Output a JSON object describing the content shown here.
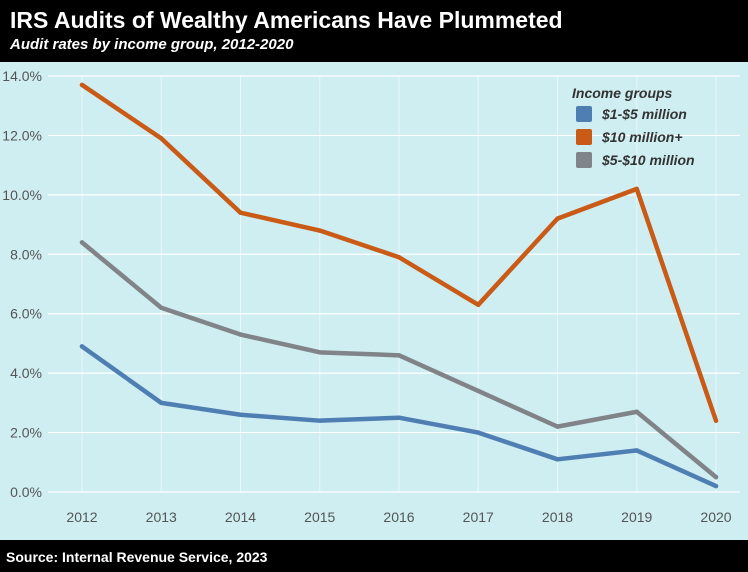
{
  "header": {
    "title": "IRS Audits of Wealthy Americans Have Plummeted",
    "subtitle": "Audit rates by income group, 2012-2020"
  },
  "footer": {
    "source": "Source: Internal Revenue Service, 2023"
  },
  "colors": {
    "background": "#cfeef2",
    "grid": "#ffffff",
    "axis_text": "#555555",
    "series_1_5m": "#4f7eb3",
    "series_10m": "#c95b16",
    "series_5_10m": "#808489"
  },
  "chart_data": {
    "type": "line",
    "title": "IRS Audits of Wealthy Americans Have Plummeted",
    "subtitle": "Audit rates by income group, 2012-2020",
    "x": [
      "2012",
      "2013",
      "2014",
      "2015",
      "2016",
      "2017",
      "2018",
      "2019",
      "2020"
    ],
    "xlabel": "",
    "ylabel": "",
    "ylim": [
      0,
      14
    ],
    "y_ticks": [
      0,
      2,
      4,
      6,
      8,
      10,
      12,
      14
    ],
    "y_tick_labels": [
      "0.0%",
      "2.0%",
      "4.0%",
      "6.0%",
      "8.0%",
      "10.0%",
      "12.0%",
      "14.0%"
    ],
    "grid": true,
    "legend": {
      "title": "Income groups",
      "placement": "top-right"
    },
    "series": [
      {
        "name": "$1-$5 million",
        "color": "#4f7eb3",
        "values": [
          4.9,
          3.0,
          2.6,
          2.4,
          2.5,
          2.0,
          1.1,
          1.4,
          0.2
        ]
      },
      {
        "name": "$10 million+",
        "color": "#c95b16",
        "values": [
          13.7,
          11.9,
          9.4,
          8.8,
          7.9,
          6.3,
          9.2,
          10.2,
          2.4
        ]
      },
      {
        "name": "$5-$10 million",
        "color": "#808489",
        "values": [
          8.4,
          6.2,
          5.3,
          4.7,
          4.6,
          3.4,
          2.2,
          2.7,
          0.5
        ]
      }
    ]
  }
}
